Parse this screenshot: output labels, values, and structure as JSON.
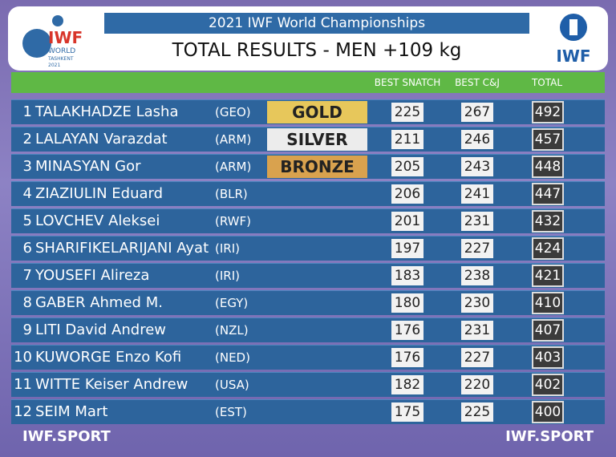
{
  "header": {
    "title": "2021 IWF World Championships",
    "subtitle": "TOTAL RESULTS - MEN +109 kg",
    "logo_left": {
      "brand": "IWF",
      "line1": "WORLD",
      "line2": "TASHKENT",
      "year": "2021"
    },
    "logo_right": "IWF"
  },
  "table": {
    "columns": [
      "BEST SNATCH",
      "BEST C&J",
      "TOTAL"
    ],
    "rows": [
      {
        "rank": 1,
        "name": "TALAKHADZE Lasha",
        "country": "(GEO)",
        "medal": "GOLD",
        "snatch": 225,
        "cj": 267,
        "total": 492
      },
      {
        "rank": 2,
        "name": "LALAYAN Varazdat",
        "country": "(ARM)",
        "medal": "SILVER",
        "snatch": 211,
        "cj": 246,
        "total": 457
      },
      {
        "rank": 3,
        "name": "MINASYAN Gor",
        "country": "(ARM)",
        "medal": "BRONZE",
        "snatch": 205,
        "cj": 243,
        "total": 448
      },
      {
        "rank": 4,
        "name": "ZIAZIULIN Eduard",
        "country": "(BLR)",
        "snatch": 206,
        "cj": 241,
        "total": 447
      },
      {
        "rank": 5,
        "name": "LOVCHEV Aleksei",
        "country": "(RWF)",
        "snatch": 201,
        "cj": 231,
        "total": 432
      },
      {
        "rank": 6,
        "name": "SHARIFIKELARIJANI Ayat",
        "country": "(IRI)",
        "snatch": 197,
        "cj": 227,
        "total": 424
      },
      {
        "rank": 7,
        "name": "YOUSEFI Alireza",
        "country": "(IRI)",
        "snatch": 183,
        "cj": 238,
        "total": 421
      },
      {
        "rank": 8,
        "name": "GABER Ahmed M.",
        "country": "(EGY)",
        "snatch": 180,
        "cj": 230,
        "total": 410
      },
      {
        "rank": 9,
        "name": "LITI David Andrew",
        "country": "(NZL)",
        "snatch": 176,
        "cj": 231,
        "total": 407
      },
      {
        "rank": 10,
        "name": "KUWORGE Enzo Kofi",
        "country": "(NED)",
        "snatch": 176,
        "cj": 227,
        "total": 403
      },
      {
        "rank": 11,
        "name": "WITTE Keiser Andrew",
        "country": "(USA)",
        "snatch": 182,
        "cj": 220,
        "total": 402
      },
      {
        "rank": 12,
        "name": "SEIM Mart",
        "country": "(EST)",
        "snatch": 175,
        "cj": 225,
        "total": 400
      }
    ]
  },
  "footer": {
    "left": "IWF.SPORT",
    "right": "IWF.SPORT"
  }
}
